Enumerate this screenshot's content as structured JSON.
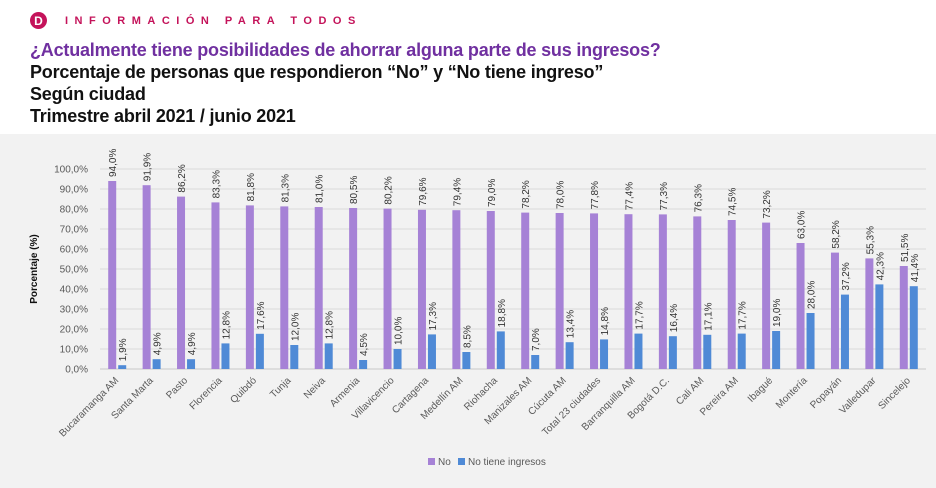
{
  "header": {
    "logo_letter": "D",
    "brand": "INFORMACIÓN PARA TODOS"
  },
  "titles": {
    "question": "¿Actualmente tiene posibilidades de ahorrar alguna parte de sus ingresos?",
    "line2": "Porcentaje de personas que respondieron “No” y “No tiene ingreso”",
    "line3": "Según ciudad",
    "line4": "Trimestre abril 2021 / junio 2021"
  },
  "chart_data": {
    "type": "bar",
    "ylabel": "Porcentaje (%)",
    "ylim": [
      0,
      100
    ],
    "yticks": [
      "0,0%",
      "10,0%",
      "20,0%",
      "30,0%",
      "40,0%",
      "50,0%",
      "60,0%",
      "70,0%",
      "80,0%",
      "90,0%",
      "100,0%"
    ],
    "grid": true,
    "legend": "bottom",
    "categories": [
      "Bucaramanga AM",
      "Santa Marta",
      "Pasto",
      "Florencia",
      "Quibdó",
      "Tunja",
      "Neiva",
      "Armenia",
      "Villavicencio",
      "Cartagena",
      "Medellín AM",
      "Riohacha",
      "Manizales AM",
      "Cúcuta AM",
      "Total 23 ciudades",
      "Barranquilla AM",
      "Bogotá D.C.",
      "Cali AM",
      "Pereira AM",
      "Ibagué",
      "Montería",
      "Popayán",
      "Valledupar",
      "Sincelejo"
    ],
    "series": [
      {
        "name": "No",
        "color": "#a682d6",
        "values": [
          94.0,
          91.9,
          86.2,
          83.3,
          81.8,
          81.3,
          81.0,
          80.5,
          80.2,
          79.6,
          79.4,
          79.0,
          78.2,
          78.0,
          77.8,
          77.4,
          77.3,
          76.3,
          74.5,
          73.2,
          63.0,
          58.2,
          55.3,
          51.5
        ]
      },
      {
        "name": "No tiene ingresos",
        "color": "#4f8ad6",
        "values": [
          1.9,
          4.9,
          4.9,
          12.8,
          17.6,
          12.0,
          12.8,
          4.5,
          10.0,
          17.3,
          8.5,
          18.8,
          7.0,
          13.4,
          14.8,
          17.7,
          16.4,
          17.1,
          17.7,
          19.0,
          28.0,
          37.2,
          42.3,
          41.4
        ]
      }
    ]
  }
}
